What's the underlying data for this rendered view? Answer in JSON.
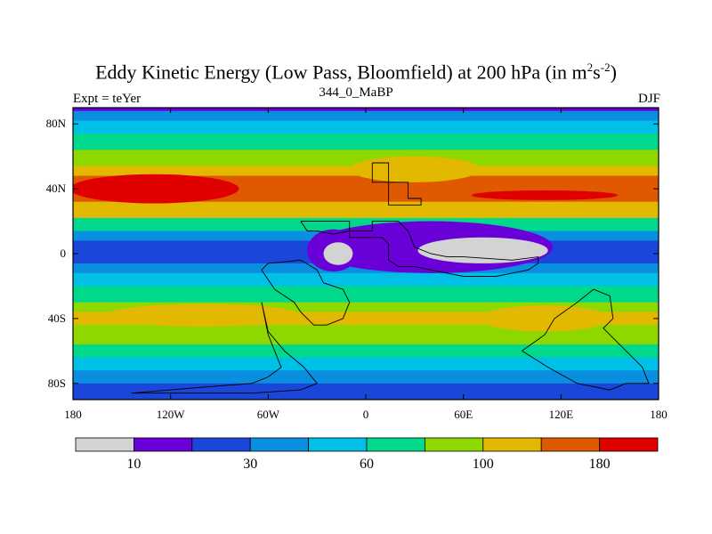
{
  "chart_data": {
    "type": "heatmap",
    "title_main": "Eddy Kinetic Energy (Low Pass, Bloomfield) at 200 hPa (in m",
    "title_units_sup1": "2",
    "title_units_mid": "s",
    "title_units_sup2": "-2",
    "title_units_end": ")",
    "subtitle": "344_0_MaBP",
    "left_label": "Expt = teYer",
    "right_label": "DJF",
    "xlim": [
      -180,
      180
    ],
    "ylim": [
      -90,
      90
    ],
    "x_ticks": [
      {
        "value": -180,
        "label": "180"
      },
      {
        "value": -120,
        "label": "120W"
      },
      {
        "value": -60,
        "label": "60W"
      },
      {
        "value": 0,
        "label": "0"
      },
      {
        "value": 60,
        "label": "60E"
      },
      {
        "value": 120,
        "label": "120E"
      },
      {
        "value": 180,
        "label": "180"
      }
    ],
    "y_ticks": [
      {
        "value": 80,
        "label": "80N"
      },
      {
        "value": 40,
        "label": "40N"
      },
      {
        "value": 0,
        "label": "0"
      },
      {
        "value": -40,
        "label": "40S"
      },
      {
        "value": -80,
        "label": "80S"
      }
    ],
    "colorbar": {
      "colors": [
        "#d3d3d3",
        "#6a00d8",
        "#1a46d9",
        "#0a8fe0",
        "#00c0e8",
        "#00d88c",
        "#8ed800",
        "#e3b800",
        "#e05800",
        "#e00000"
      ],
      "labels": [
        {
          "boundary": 1,
          "text": "10"
        },
        {
          "boundary": 3,
          "text": "30"
        },
        {
          "boundary": 5,
          "text": "60"
        },
        {
          "boundary": 7,
          "text": "100"
        },
        {
          "boundary": 9,
          "text": "180"
        }
      ]
    },
    "bands": [
      {
        "lat": [
          88,
          90
        ],
        "level": 1
      },
      {
        "lat": [
          82,
          88
        ],
        "level": 3
      },
      {
        "lat": [
          74,
          82
        ],
        "level": 4
      },
      {
        "lat": [
          64,
          74
        ],
        "level": 5
      },
      {
        "lat": [
          54,
          64
        ],
        "level": 6
      },
      {
        "lat": [
          48,
          54
        ],
        "level": 7
      },
      {
        "lat": [
          32,
          48
        ],
        "level": 8
      },
      {
        "lat": [
          22,
          32
        ],
        "level": 7
      },
      {
        "lat": [
          14,
          22
        ],
        "level": 5
      },
      {
        "lat": [
          8,
          14
        ],
        "level": 3
      },
      {
        "lat": [
          -6,
          8
        ],
        "level": 2
      },
      {
        "lat": [
          -12,
          -6
        ],
        "level": 3
      },
      {
        "lat": [
          -20,
          -12
        ],
        "level": 4
      },
      {
        "lat": [
          -30,
          -20
        ],
        "level": 5
      },
      {
        "lat": [
          -36,
          -30
        ],
        "level": 6
      },
      {
        "lat": [
          -44,
          -36
        ],
        "level": 7
      },
      {
        "lat": [
          -56,
          -44
        ],
        "level": 6
      },
      {
        "lat": [
          -64,
          -56
        ],
        "level": 5
      },
      {
        "lat": [
          -72,
          -64
        ],
        "level": 4
      },
      {
        "lat": [
          -80,
          -72
        ],
        "level": 3
      },
      {
        "lat": [
          -90,
          -80
        ],
        "level": 2
      }
    ],
    "blobs": [
      {
        "lon": -130,
        "lat": 40,
        "rlon": 52,
        "rlat": 9,
        "level": 9
      },
      {
        "lon": 110,
        "lat": 36,
        "rlon": 45,
        "rlat": 3,
        "level": 9
      },
      {
        "lon": 30,
        "lat": 52,
        "rlon": 40,
        "rlat": 8,
        "level": 7
      },
      {
        "lon": 40,
        "lat": 4,
        "rlon": 75,
        "rlat": 16,
        "level": 1
      },
      {
        "lon": -20,
        "lat": 2,
        "rlon": 16,
        "rlat": 13,
        "level": 1
      },
      {
        "lon": 72,
        "lat": 2,
        "rlon": 40,
        "rlat": 8,
        "level": 0
      },
      {
        "lon": -17,
        "lat": 0,
        "rlon": 9,
        "rlat": 7,
        "level": 0
      },
      {
        "lon": -100,
        "lat": -38,
        "rlon": 60,
        "rlat": 7,
        "level": 7
      },
      {
        "lon": 110,
        "lat": -40,
        "rlon": 40,
        "rlat": 8,
        "level": 7
      }
    ],
    "outlines": [
      [
        [
          4,
          56
        ],
        [
          14,
          56
        ],
        [
          14,
          44
        ],
        [
          26,
          44
        ],
        [
          26,
          34
        ],
        [
          34,
          34
        ],
        [
          34,
          30
        ],
        [
          14,
          30
        ],
        [
          14,
          44
        ],
        [
          4,
          44
        ],
        [
          4,
          56
        ]
      ],
      [
        [
          -40,
          20
        ],
        [
          -10,
          20
        ],
        [
          -10,
          10
        ],
        [
          0,
          10
        ],
        [
          10,
          10
        ],
        [
          14,
          6
        ],
        [
          14,
          -4
        ],
        [
          20,
          -8
        ],
        [
          30,
          -8
        ],
        [
          40,
          -10
        ],
        [
          50,
          -12
        ],
        [
          60,
          -14
        ],
        [
          80,
          -14
        ],
        [
          90,
          -12
        ],
        [
          100,
          -10
        ],
        [
          106,
          -6
        ],
        [
          106,
          -2
        ],
        [
          90,
          -4
        ],
        [
          60,
          -2
        ],
        [
          50,
          -2
        ],
        [
          40,
          0
        ],
        [
          30,
          4
        ],
        [
          26,
          14
        ],
        [
          20,
          20
        ],
        [
          4,
          20
        ],
        [
          4,
          14
        ],
        [
          -10,
          14
        ],
        [
          -20,
          12
        ],
        [
          -30,
          14
        ],
        [
          -36,
          14
        ],
        [
          -40,
          20
        ]
      ],
      [
        [
          -60,
          -6
        ],
        [
          -40,
          -4
        ],
        [
          -30,
          -10
        ],
        [
          -26,
          -18
        ],
        [
          -20,
          -20
        ],
        [
          -14,
          -22
        ],
        [
          -10,
          -30
        ],
        [
          -14,
          -40
        ],
        [
          -24,
          -44
        ],
        [
          -32,
          -44
        ],
        [
          -36,
          -40
        ],
        [
          -40,
          -36
        ],
        [
          -44,
          -30
        ],
        [
          -50,
          -26
        ],
        [
          -56,
          -22
        ],
        [
          -60,
          -16
        ],
        [
          -64,
          -10
        ],
        [
          -60,
          -6
        ]
      ],
      [
        [
          -64,
          -30
        ],
        [
          -60,
          -50
        ],
        [
          -56,
          -60
        ],
        [
          -52,
          -70
        ],
        [
          -60,
          -76
        ],
        [
          -70,
          -80
        ],
        [
          -96,
          -82
        ],
        [
          -120,
          -84
        ],
        [
          -144,
          -86
        ],
        [
          -130,
          -86
        ],
        [
          -100,
          -86
        ],
        [
          -70,
          -86
        ],
        [
          -40,
          -84
        ],
        [
          -30,
          -80
        ],
        [
          -38,
          -70
        ],
        [
          -50,
          -60
        ],
        [
          -60,
          -48
        ],
        [
          -64,
          -30
        ]
      ],
      [
        [
          96,
          -60
        ],
        [
          110,
          -50
        ],
        [
          116,
          -40
        ],
        [
          130,
          -30
        ],
        [
          140,
          -22
        ],
        [
          150,
          -26
        ],
        [
          152,
          -40
        ],
        [
          146,
          -46
        ],
        [
          160,
          -60
        ],
        [
          170,
          -70
        ],
        [
          174,
          -80
        ],
        [
          160,
          -80
        ],
        [
          150,
          -84
        ],
        [
          130,
          -80
        ],
        [
          112,
          -70
        ],
        [
          96,
          -60
        ]
      ]
    ]
  }
}
